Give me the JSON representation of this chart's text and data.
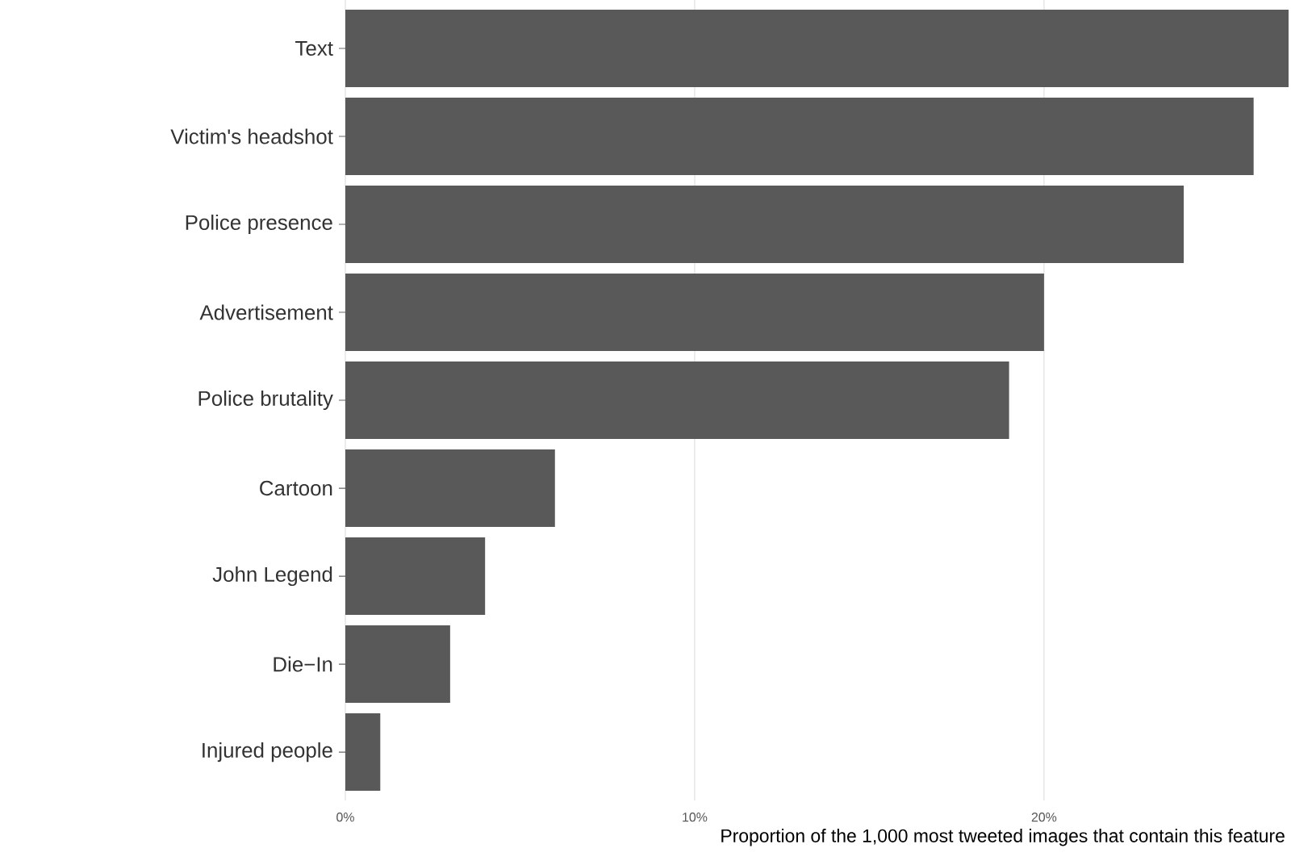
{
  "chart_data": {
    "type": "bar",
    "orientation": "horizontal",
    "xlabel": "Proportion of the 1,000 most tweeted images that contain this feature",
    "categories": [
      "Text",
      "Victim's headshot",
      "Police presence",
      "Advertisement",
      "Police brutality",
      "Cartoon",
      "John Legend",
      "Die−In",
      "Injured people"
    ],
    "values": [
      27,
      26,
      24,
      20,
      19,
      6,
      4,
      3,
      1
    ],
    "color": "#595959",
    "xlim": [
      0,
      27.07
    ],
    "xticks": [
      {
        "value": 0,
        "label": "0%"
      },
      {
        "value": 10,
        "label": "10%"
      },
      {
        "value": 20,
        "label": "20%"
      }
    ],
    "grid": "x"
  }
}
